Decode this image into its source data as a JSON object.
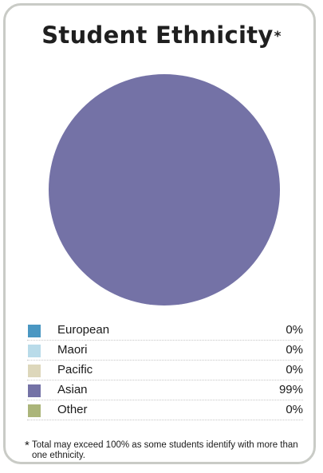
{
  "chart_data": {
    "type": "pie",
    "title": "Student Ethnicity",
    "title_mark": "*",
    "categories": [
      "European",
      "Maori",
      "Pacific",
      "Asian",
      "Other"
    ],
    "values": [
      0,
      0,
      0,
      99,
      0
    ],
    "labels": [
      "0%",
      "0%",
      "0%",
      "99%",
      "0%"
    ],
    "colors": [
      "#4a97c2",
      "#b9dbe9",
      "#ddd7bb",
      "#7472a6",
      "#abb57a"
    ],
    "legend_placement": "bottom",
    "footnote_mark": "*",
    "footnote": "Total may exceed 100% as some students identify with more than one ethnicity."
  }
}
